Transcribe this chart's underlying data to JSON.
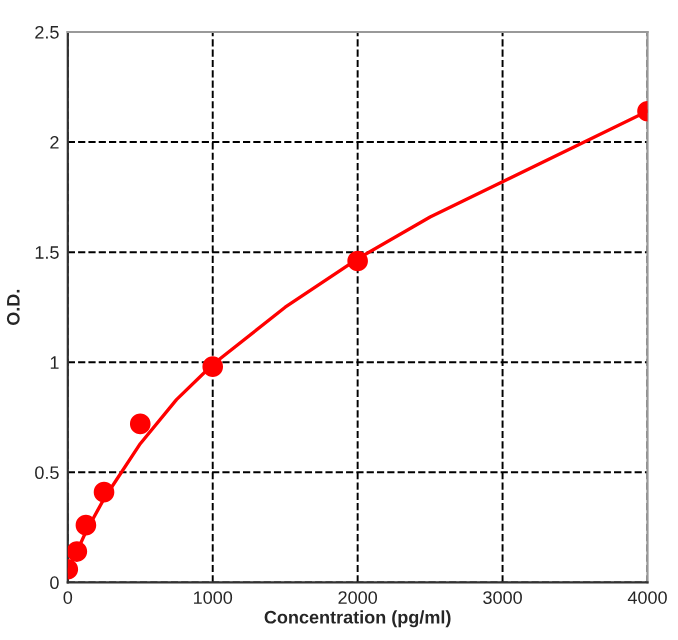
{
  "chart_data": {
    "type": "scatter",
    "xlabel": "Concentration (pg/ml)",
    "ylabel": "O.D.",
    "xlim": [
      0,
      4000
    ],
    "xticks": [
      0,
      1000,
      2000,
      3000,
      4000
    ],
    "ylim": [
      0,
      2.5
    ],
    "yticks": [
      0,
      0.5,
      1,
      1.5,
      2,
      2.5
    ],
    "grid": true,
    "line_style": "dashed",
    "series": [
      {
        "color": "#ff0000",
        "marker": "circle",
        "x": [
          0,
          62.5,
          125,
          250,
          500,
          1000,
          2000,
          4000
        ],
        "values": [
          0.06,
          0.14,
          0.26,
          0.41,
          0.72,
          0.98,
          1.46,
          2.14
        ]
      },
      {
        "type": "line",
        "color": "#ff0000",
        "marker": "none",
        "line_style": "solid",
        "x": [
          0,
          62.5,
          125,
          250,
          500,
          750,
          1000,
          1500,
          2000,
          2500,
          3000,
          3500,
          4000
        ],
        "values": [
          0.05,
          0.14,
          0.23,
          0.38,
          0.63,
          0.83,
          0.99,
          1.25,
          1.47,
          1.66,
          1.82,
          1.98,
          2.14
        ]
      }
    ]
  }
}
